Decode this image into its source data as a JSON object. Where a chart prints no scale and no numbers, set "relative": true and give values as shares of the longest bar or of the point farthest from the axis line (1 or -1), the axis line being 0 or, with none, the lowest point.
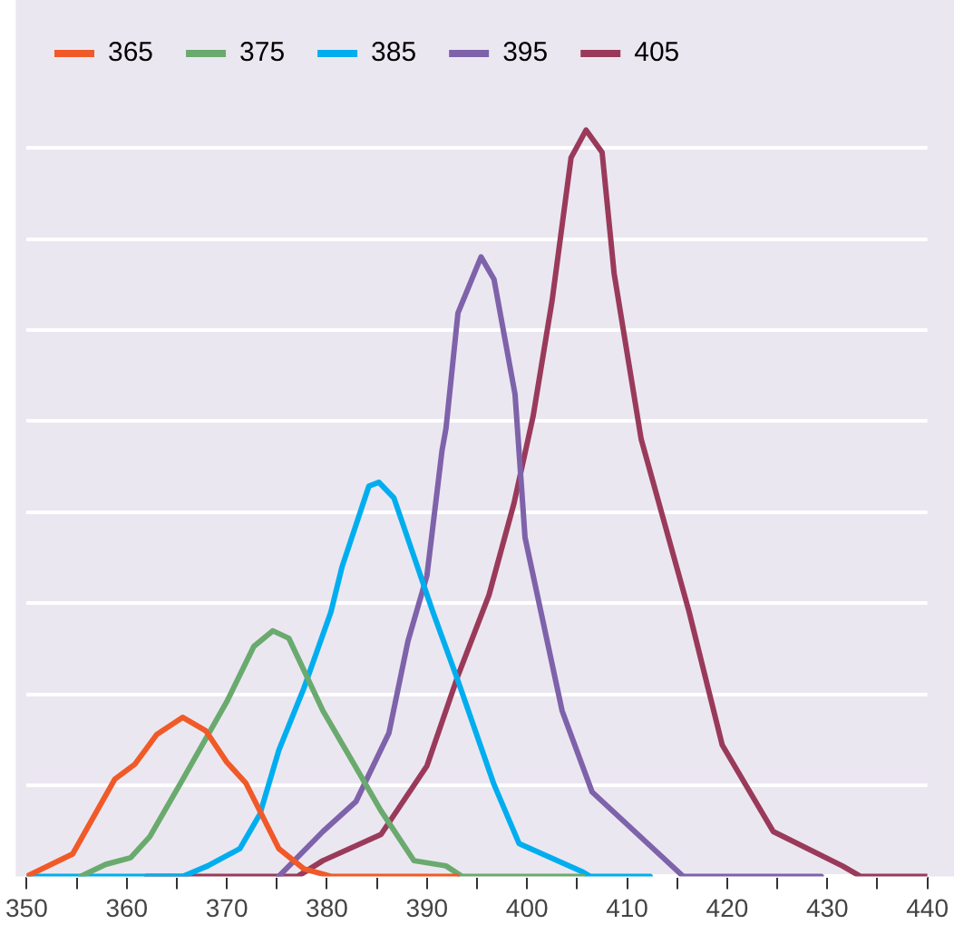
{
  "chart_data": {
    "type": "line",
    "relative": true,
    "xlim": [
      350,
      440
    ],
    "xticks": [
      350,
      {
        "value": 355,
        "label": null
      },
      360,
      {
        "value": 365,
        "label": null
      },
      370,
      {
        "value": 375,
        "label": null
      },
      380,
      {
        "value": 385,
        "label": null
      },
      390,
      {
        "value": 395,
        "label": null
      },
      400,
      {
        "value": 405,
        "label": null
      },
      410,
      {
        "value": 415,
        "label": null
      },
      420,
      {
        "value": 425,
        "label": null
      },
      430,
      {
        "value": 435,
        "label": null
      },
      440
    ],
    "grid": "y",
    "legend": "top left",
    "marker": "none",
    "line_style": "solid",
    "series": [
      {
        "name": "365",
        "color": "#f05a28",
        "x": [
          350,
          354.6,
          358.8,
          360.8,
          363,
          365.6,
          367.9,
          370,
          371.9,
          375.2,
          377.7,
          380.4,
          393
        ],
        "values": [
          0,
          0.03,
          0.13,
          0.15,
          0.19,
          0.213,
          0.195,
          0.153,
          0.125,
          0.037,
          0.01,
          0,
          0
        ]
      },
      {
        "name": "375",
        "color": "#6aaa6e",
        "x": [
          355.4,
          357.9,
          360.4,
          362.3,
          365.6,
          370,
          372.7,
          374.6,
          376.2,
          379.6,
          382.9,
          385.4,
          388.7,
          391.9,
          393.5,
          405.6
        ],
        "values": [
          0,
          0.016,
          0.025,
          0.053,
          0.13,
          0.234,
          0.308,
          0.329,
          0.319,
          0.222,
          0.146,
          0.088,
          0.021,
          0.014,
          0,
          0
        ]
      },
      {
        "name": "385",
        "color": "#00aeef",
        "x": [
          350,
          365.6,
          368.1,
          371.3,
          373.3,
          375.2,
          377.7,
          380.4,
          381.5,
          384.2,
          385.2,
          386.7,
          390.6,
          393.1,
          396.7,
          399.2,
          405.4,
          406.3,
          412.3
        ],
        "values": [
          0,
          0,
          0.014,
          0.037,
          0.083,
          0.169,
          0.252,
          0.354,
          0.414,
          0.523,
          0.528,
          0.507,
          0.354,
          0.262,
          0.123,
          0.044,
          0.007,
          0,
          0
        ]
      },
      {
        "name": "395",
        "color": "#7e62aa",
        "x": [
          375.2,
          379.6,
          382.9,
          386.2,
          388.1,
          390,
          391.5,
          391.9,
          393.1,
          395.4,
          396.7,
          398.8,
          399.8,
          403.5,
          406.5,
          415.6,
          429.4
        ],
        "values": [
          0,
          0.06,
          0.1,
          0.192,
          0.315,
          0.403,
          0.57,
          0.6,
          0.755,
          0.83,
          0.8,
          0.646,
          0.454,
          0.222,
          0.113,
          0,
          0
        ]
      },
      {
        "name": "405",
        "color": "#9a3a5a",
        "x": [
          362,
          377.1,
          379.6,
          385.4,
          390,
          393.1,
          396.2,
          398.7,
          400.6,
          402.5,
          404.4,
          405.9,
          407.5,
          408.7,
          411.4,
          416.2,
          419.5,
          424.6,
          431.5,
          433.3,
          440
        ],
        "values": [
          0,
          0,
          0.021,
          0.056,
          0.148,
          0.269,
          0.377,
          0.5,
          0.616,
          0.771,
          0.963,
          1,
          0.97,
          0.808,
          0.586,
          0.354,
          0.176,
          0.06,
          0.014,
          0,
          0
        ]
      }
    ]
  }
}
